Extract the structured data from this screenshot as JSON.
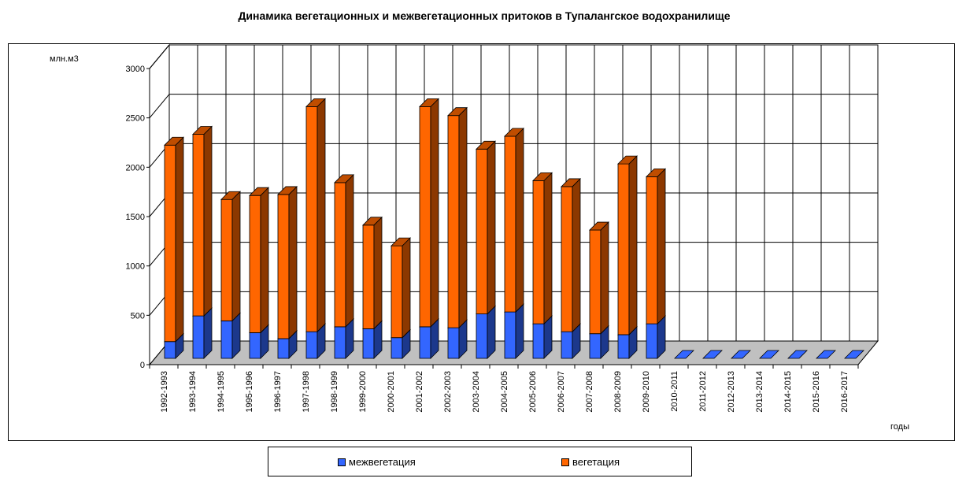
{
  "chart_data": {
    "type": "bar",
    "stacked": true,
    "three_d": true,
    "title": "Динамика вегетационных и межвегетационных притоков в Тупалангское водохранилище",
    "ylabel": "млн.м3",
    "xlabel": "годы",
    "ylim": [
      0,
      3000
    ],
    "yticks": [
      0,
      500,
      1000,
      1500,
      2000,
      2500,
      3000
    ],
    "grid": true,
    "legend_position": "bottom",
    "categories": [
      "1992-1993",
      "1993-1994",
      "1994-1995",
      "1995-1996",
      "1996-1997",
      "1997-1998",
      "1998-1999",
      "1999-2000",
      "2000-2001",
      "2001-2002",
      "2002-2003",
      "2003-2004",
      "2004-2005",
      "2005-2006",
      "2006-2007",
      "2007-2008",
      "2008-2009",
      "2009-2010",
      "2010-2011",
      "2011-2012",
      "2012-2013",
      "2013-2014",
      "2014-2015",
      "2015-2016",
      "2016-2017"
    ],
    "series": [
      {
        "name": "межвегетация",
        "color": "#3366ff",
        "values": [
          170,
          430,
          380,
          260,
          200,
          270,
          320,
          300,
          210,
          320,
          310,
          450,
          470,
          350,
          270,
          250,
          240,
          350,
          0,
          0,
          0,
          0,
          0,
          0,
          0
        ]
      },
      {
        "name": "вегетация",
        "color": "#ff6600",
        "values": [
          1990,
          1840,
          1230,
          1390,
          1460,
          2280,
          1460,
          1050,
          930,
          2230,
          2150,
          1670,
          1780,
          1450,
          1470,
          1050,
          1730,
          1490,
          0,
          0,
          0,
          0,
          0,
          0,
          0
        ]
      }
    ]
  },
  "legend": {
    "items": [
      {
        "label": "межвегетация",
        "color": "#3366ff"
      },
      {
        "label": "вегетация",
        "color": "#ff6600"
      }
    ]
  }
}
